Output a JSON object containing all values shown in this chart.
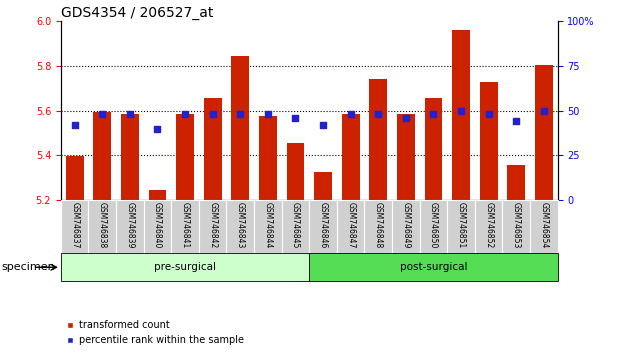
{
  "title": "GDS4354 / 206527_at",
  "samples": [
    "GSM746837",
    "GSM746838",
    "GSM746839",
    "GSM746840",
    "GSM746841",
    "GSM746842",
    "GSM746843",
    "GSM746844",
    "GSM746845",
    "GSM746846",
    "GSM746847",
    "GSM746848",
    "GSM746849",
    "GSM746850",
    "GSM746851",
    "GSM746852",
    "GSM746853",
    "GSM746854"
  ],
  "bar_values": [
    5.395,
    5.595,
    5.585,
    5.245,
    5.585,
    5.655,
    5.845,
    5.575,
    5.455,
    5.325,
    5.585,
    5.74,
    5.585,
    5.655,
    5.96,
    5.73,
    5.355,
    5.805
  ],
  "percentile_values": [
    42,
    48,
    48,
    40,
    48,
    48,
    48,
    48,
    46,
    42,
    48,
    48,
    46,
    48,
    50,
    48,
    44,
    50
  ],
  "ylim_left": [
    5.2,
    6.0
  ],
  "ylim_right": [
    0,
    100
  ],
  "yticks_left": [
    5.2,
    5.4,
    5.6,
    5.8,
    6.0
  ],
  "yticks_right": [
    0,
    25,
    50,
    75,
    100
  ],
  "ytick_labels_right": [
    "0",
    "25",
    "50",
    "75",
    "100%"
  ],
  "bar_color": "#cc2200",
  "dot_color": "#2222cc",
  "bg_color": "#ffffff",
  "bar_bottom": 5.2,
  "groups": [
    {
      "label": "pre-surgical",
      "start": 0,
      "end": 8,
      "color": "#ccffcc"
    },
    {
      "label": "post-surgical",
      "start": 9,
      "end": 17,
      "color": "#55dd55"
    }
  ],
  "specimen_label": "specimen",
  "legend_items": [
    {
      "color": "#cc2200",
      "label": "transformed count"
    },
    {
      "color": "#2222cc",
      "label": "percentile rank within the sample"
    }
  ],
  "title_fontsize": 10,
  "tick_fontsize": 7,
  "bar_width": 0.65,
  "dot_size": 18
}
